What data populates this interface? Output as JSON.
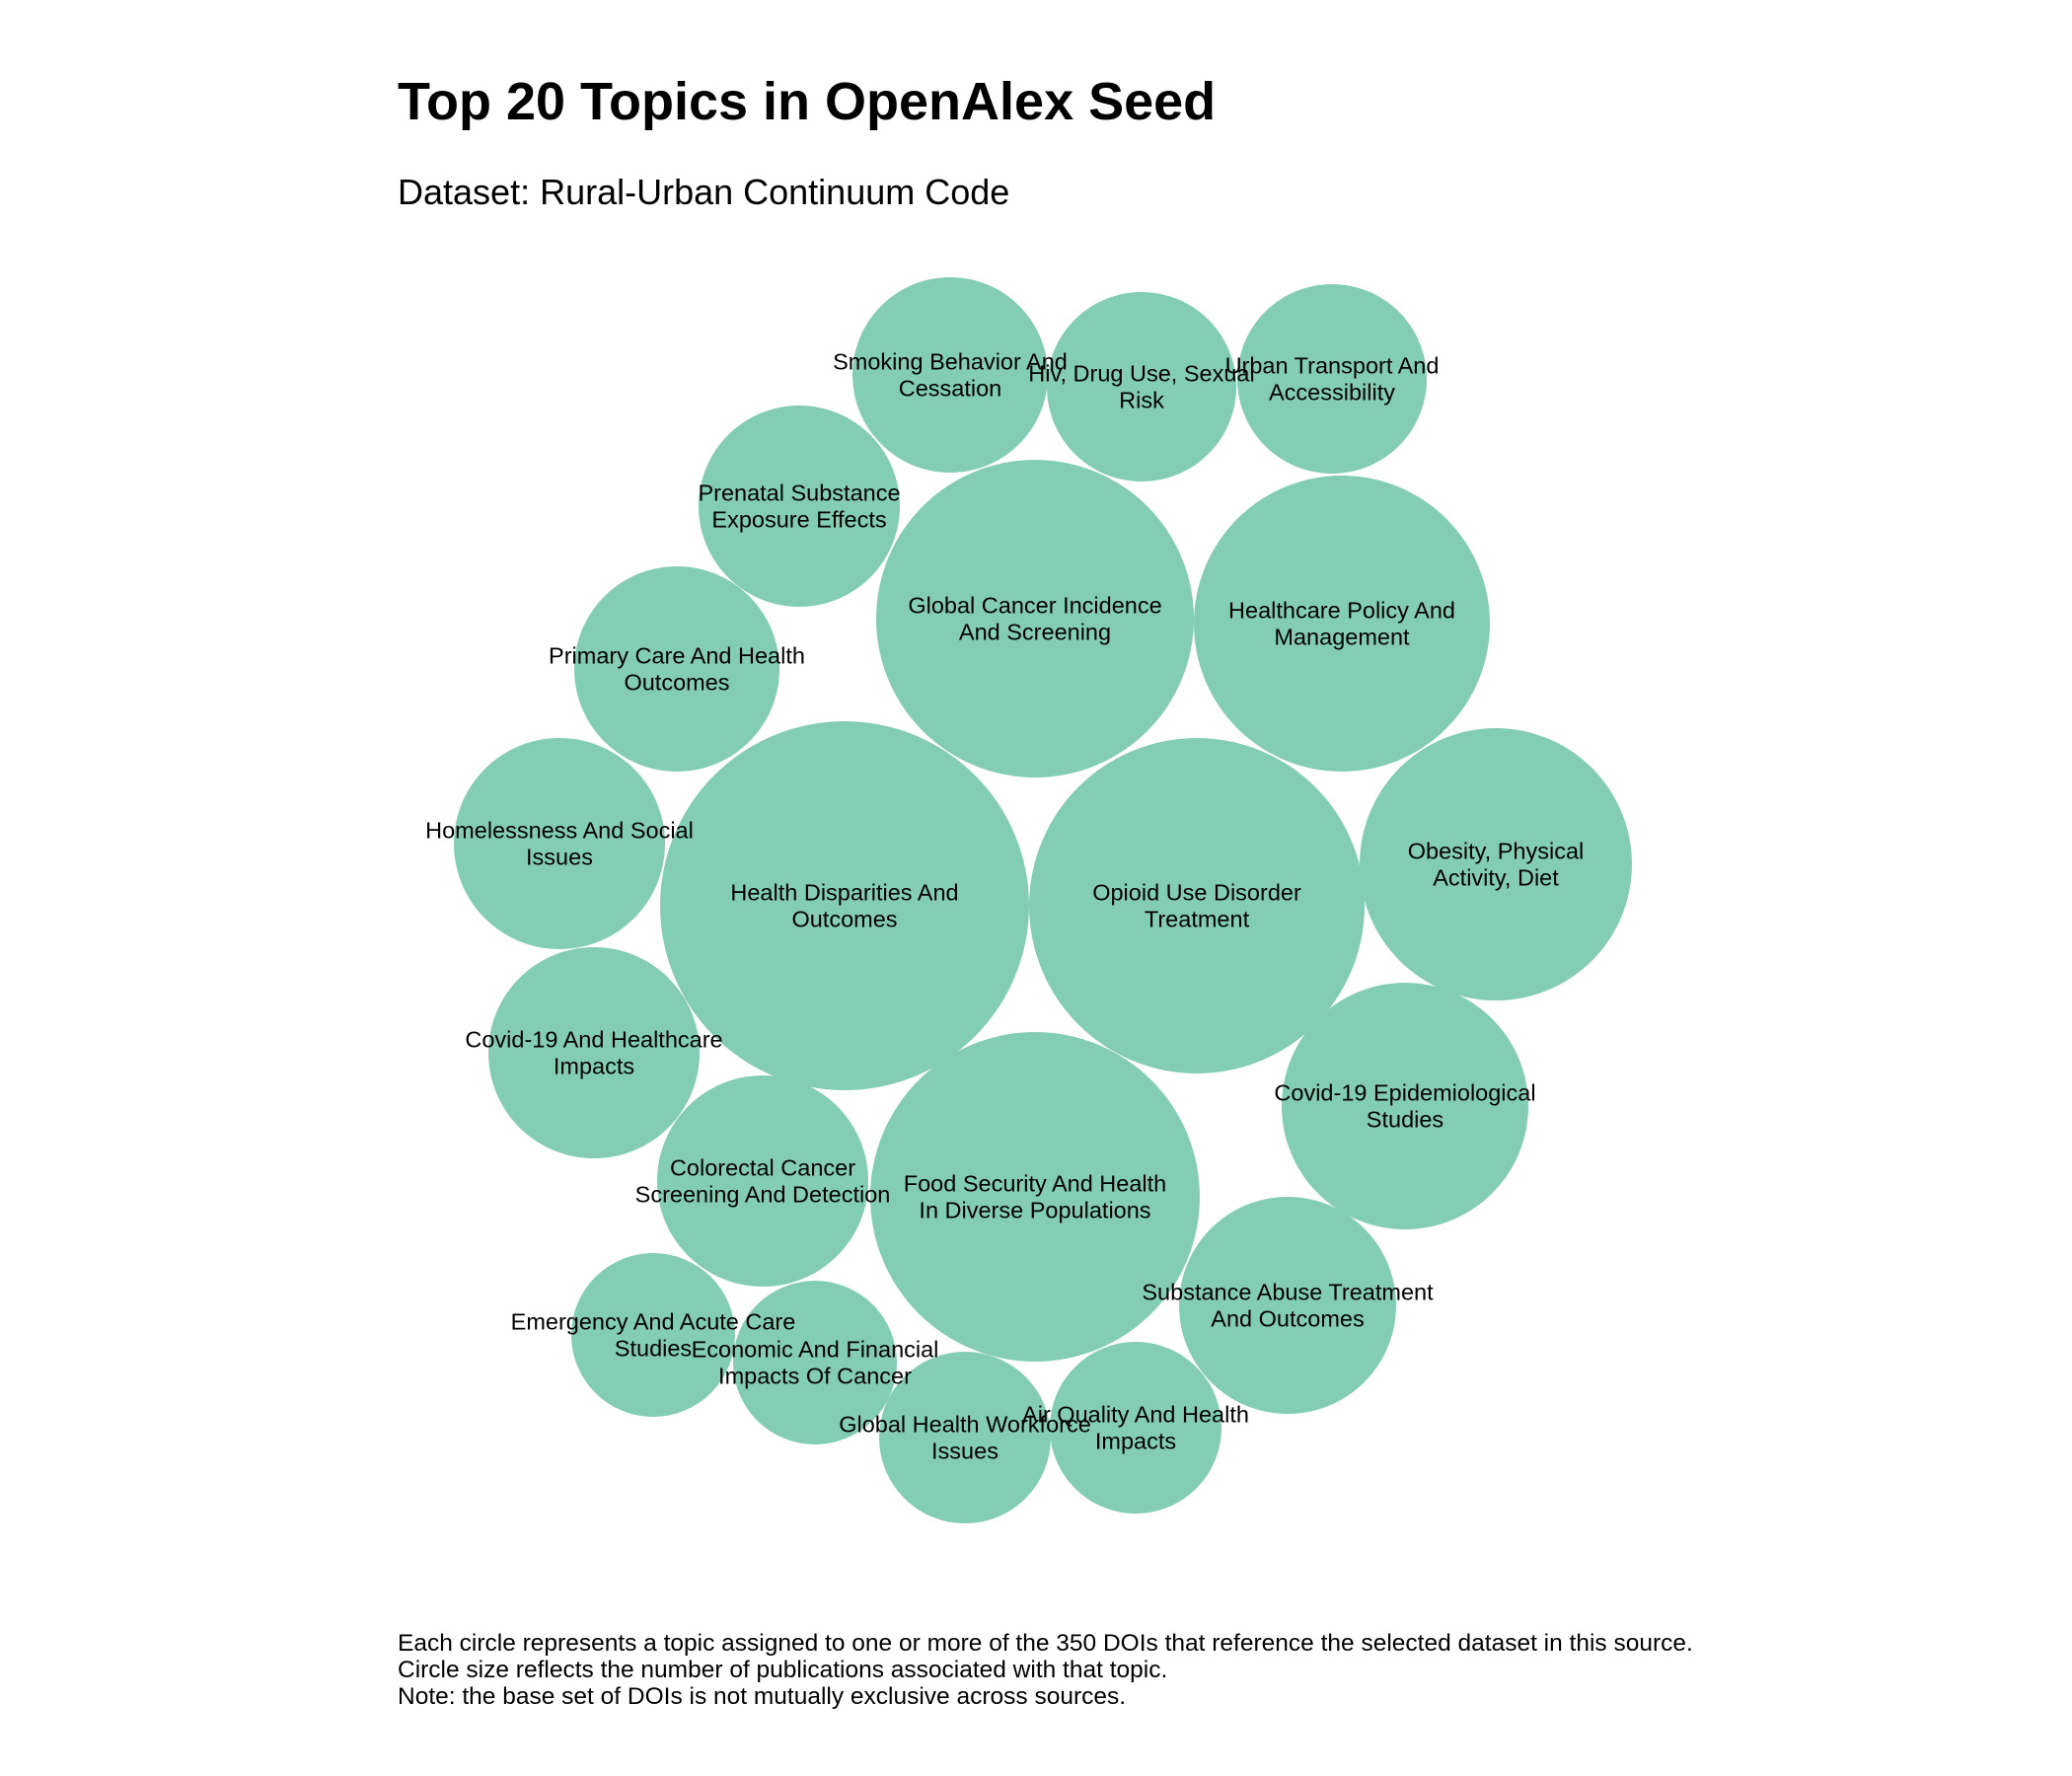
{
  "title": "Top 20 Topics in OpenAlex Seed",
  "subtitle": "Dataset: Rural-Urban Continuum Code",
  "caption": [
    "Each circle represents a topic assigned to one or more of the 350 DOIs that reference the selected dataset in this source.",
    "Circle size reflects the number of publications associated with that topic.",
    "Note: the base set of DOIs is not mutually exclusive across sources."
  ],
  "colors": {
    "bubble": "#84cdb5",
    "text": "#000000",
    "background": "#ffffff"
  },
  "chart_data": {
    "type": "bubble",
    "title": "Top 20 Topics in OpenAlex Seed",
    "subtitle": "Dataset: Rural-Urban Continuum Code",
    "size_encoding": "relative publication count per topic (no absolute counts shown)",
    "topics": [
      {
        "label": [
          "Health Disparities And",
          "Outcomes"
        ],
        "relative_size": 1.0
      },
      {
        "label": [
          "Opioid Use Disorder",
          "Treatment"
        ],
        "relative_size": 0.83
      },
      {
        "label": [
          "Food Security And Health",
          "In Diverse Populations"
        ],
        "relative_size": 0.81
      },
      {
        "label": [
          "Global Cancer Incidence",
          "And Screening"
        ],
        "relative_size": 0.74
      },
      {
        "label": [
          "Healthcare Policy And",
          "Management"
        ],
        "relative_size": 0.64
      },
      {
        "label": [
          "Obesity, Physical",
          "Activity, Diet"
        ],
        "relative_size": 0.55
      },
      {
        "label": [
          "Covid-19 Epidemiological",
          "Studies"
        ],
        "relative_size": 0.45
      },
      {
        "label": [
          "Substance Abuse Treatment",
          "And Outcomes"
        ],
        "relative_size": 0.35
      },
      {
        "label": [
          "Homelessness And Social",
          "Issues"
        ],
        "relative_size": 0.33
      },
      {
        "label": [
          "Covid-19 And Healthcare",
          "Impacts"
        ],
        "relative_size": 0.33
      },
      {
        "label": [
          "Colorectal Cancer",
          "Screening And Detection"
        ],
        "relative_size": 0.33
      },
      {
        "label": [
          "Primary Care And Health",
          "Outcomes"
        ],
        "relative_size": 0.31
      },
      {
        "label": [
          "Prenatal Substance",
          "Exposure Effects"
        ],
        "relative_size": 0.3
      },
      {
        "label": [
          "Smoking Behavior And",
          "Cessation"
        ],
        "relative_size": 0.28
      },
      {
        "label": [
          "Hiv, Drug Use, Sexual",
          "Risk"
        ],
        "relative_size": 0.26
      },
      {
        "label": [
          "Urban Transport And",
          "Accessibility"
        ],
        "relative_size": 0.26
      },
      {
        "label": [
          "Global Health Workforce",
          "Issues"
        ],
        "relative_size": 0.21
      },
      {
        "label": [
          "Air Quality And Health",
          "Impacts"
        ],
        "relative_size": 0.21
      },
      {
        "label": [
          "Emergency And Acute Care",
          "Studies"
        ],
        "relative_size": 0.19
      },
      {
        "label": [
          "Economic And Financial",
          "Impacts Of Cancer"
        ],
        "relative_size": 0.19
      }
    ]
  }
}
